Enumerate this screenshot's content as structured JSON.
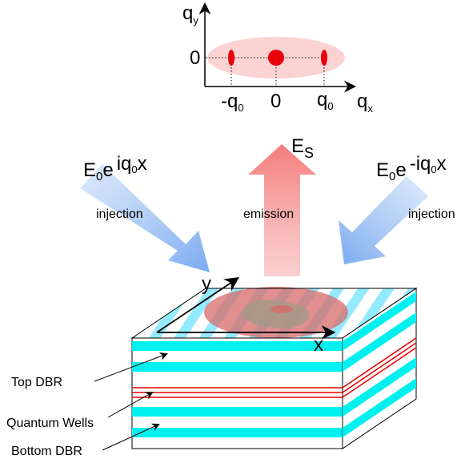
{
  "momentum_plot": {
    "y_axis_label": [
      "q",
      "y"
    ],
    "x_axis_label": [
      "q",
      "x"
    ],
    "y_tick": "0",
    "x_ticks": [
      [
        "-q",
        "0"
      ],
      [
        "0"
      ],
      [
        "q",
        "0"
      ]
    ]
  },
  "emission_label": [
    "E",
    "S"
  ],
  "left_field": [
    "E",
    "0",
    "e",
    "iq",
    "0",
    "x"
  ],
  "right_field": [
    "E",
    "0",
    "e",
    "-iq",
    "0",
    "x"
  ],
  "left_arrow_label": "injection",
  "center_arrow_label": "emission",
  "right_arrow_label": "injection",
  "device": {
    "y_label": "y",
    "x_label": "x"
  },
  "layer_labels": [
    "Top DBR",
    "Quantum Wells",
    "Bottom DBR"
  ]
}
